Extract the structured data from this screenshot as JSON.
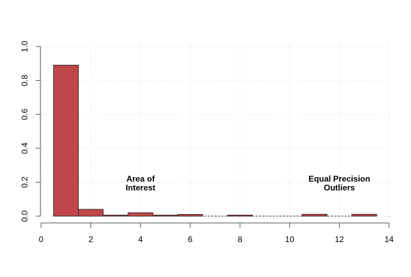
{
  "chart_data": {
    "type": "bar",
    "title": "",
    "xlabel": "",
    "ylabel": "",
    "xlim": [
      0,
      14
    ],
    "ylim": [
      0,
      1.0
    ],
    "x_ticks": [
      "0",
      "2",
      "4",
      "6",
      "8",
      "10",
      "12",
      "14"
    ],
    "y_ticks": [
      "0.0",
      "0.2",
      "0.4",
      "0.6",
      "0.8",
      "1.0"
    ],
    "grid": true,
    "bin_width": 1,
    "bins": [
      {
        "start": 0.5,
        "end": 1.5,
        "value": 0.89
      },
      {
        "start": 1.5,
        "end": 2.5,
        "value": 0.04
      },
      {
        "start": 2.5,
        "end": 3.5,
        "value": 0.003
      },
      {
        "start": 3.5,
        "end": 4.5,
        "value": 0.02
      },
      {
        "start": 4.5,
        "end": 5.5,
        "value": 0.003
      },
      {
        "start": 5.5,
        "end": 6.5,
        "value": 0.01
      },
      {
        "start": 6.5,
        "end": 7.5,
        "value": 0.0
      },
      {
        "start": 7.5,
        "end": 8.5,
        "value": 0.004
      },
      {
        "start": 8.5,
        "end": 9.5,
        "value": 0.0
      },
      {
        "start": 9.5,
        "end": 10.5,
        "value": 0.0
      },
      {
        "start": 10.5,
        "end": 11.5,
        "value": 0.011
      },
      {
        "start": 11.5,
        "end": 12.5,
        "value": 0.0
      },
      {
        "start": 12.5,
        "end": 13.5,
        "value": 0.011
      }
    ],
    "annotations": [
      {
        "lines": [
          "Area of",
          "Interest"
        ],
        "x": 4,
        "y": 0.2
      },
      {
        "lines": [
          "Equal Precision",
          "Outliers"
        ],
        "x": 12,
        "y": 0.2
      }
    ],
    "colors": {
      "bar_fill": "#c1464a",
      "bar_stroke": "#3a2a2a",
      "grid": "#d9d9d9",
      "axis": "#555555"
    }
  }
}
